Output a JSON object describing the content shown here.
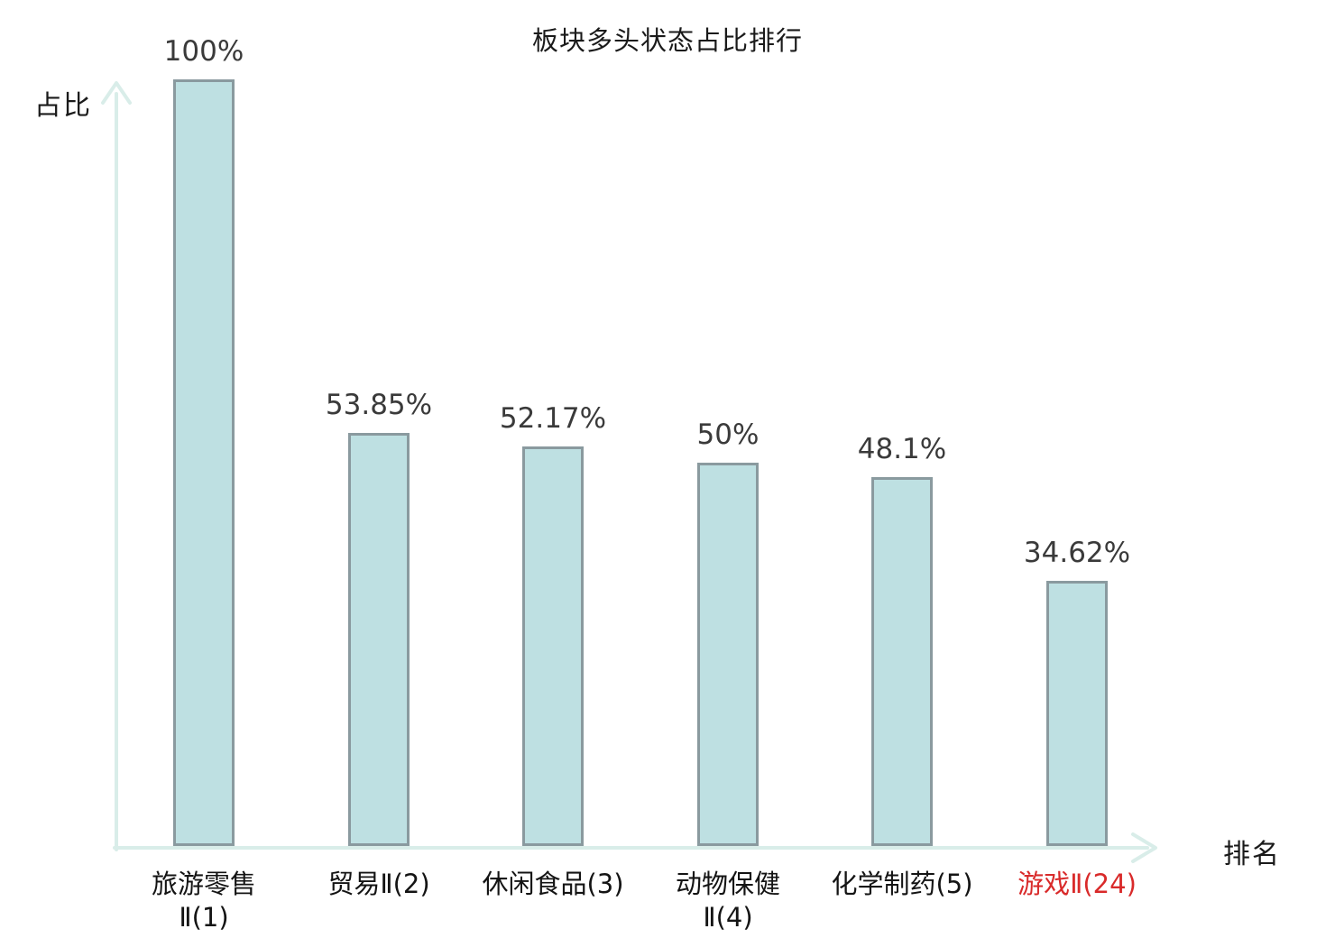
{
  "chart_data": {
    "type": "bar",
    "title": "板块多头状态占比排行",
    "xlabel": "排名",
    "ylabel": "占比",
    "ylim": [
      0,
      100
    ],
    "grid": false,
    "legend": null,
    "axis_style": "arrow-no-ticks",
    "categories": [
      "旅游零售Ⅱ(1)",
      "贸易Ⅱ(2)",
      "休闲食品(3)",
      "动物保健Ⅱ(4)",
      "化学制药(5)",
      "游戏Ⅱ(24)"
    ],
    "values": [
      100,
      53.85,
      52.17,
      50,
      48.1,
      34.62
    ],
    "bars": [
      {
        "category": "旅游零售Ⅱ(1)",
        "category_lines": [
          "旅游零售",
          "Ⅱ(1)"
        ],
        "value": 100,
        "value_label": "100%",
        "highlight": false
      },
      {
        "category": "贸易Ⅱ(2)",
        "category_lines": [
          "贸易Ⅱ(2)"
        ],
        "value": 53.85,
        "value_label": "53.85%",
        "highlight": false
      },
      {
        "category": "休闲食品(3)",
        "category_lines": [
          "休闲食品(3)"
        ],
        "value": 52.17,
        "value_label": "52.17%",
        "highlight": false
      },
      {
        "category": "动物保健Ⅱ(4)",
        "category_lines": [
          "动物保健",
          "Ⅱ(4)"
        ],
        "value": 50,
        "value_label": "50%",
        "highlight": false
      },
      {
        "category": "化学制药(5)",
        "category_lines": [
          "化学制药(5)"
        ],
        "value": 48.1,
        "value_label": "48.1%",
        "highlight": false
      },
      {
        "category": "游戏Ⅱ(24)",
        "category_lines": [
          "游戏Ⅱ(24)"
        ],
        "value": 34.62,
        "value_label": "34.62%",
        "highlight": true
      }
    ],
    "colors": {
      "bar_fill": "#bee0e2",
      "bar_border": "#8a9a9f",
      "axis": "#d9ede9",
      "value_label": "#3a3a3a",
      "text": "#1a1a1a",
      "highlight_label": "#d92a2a"
    }
  }
}
